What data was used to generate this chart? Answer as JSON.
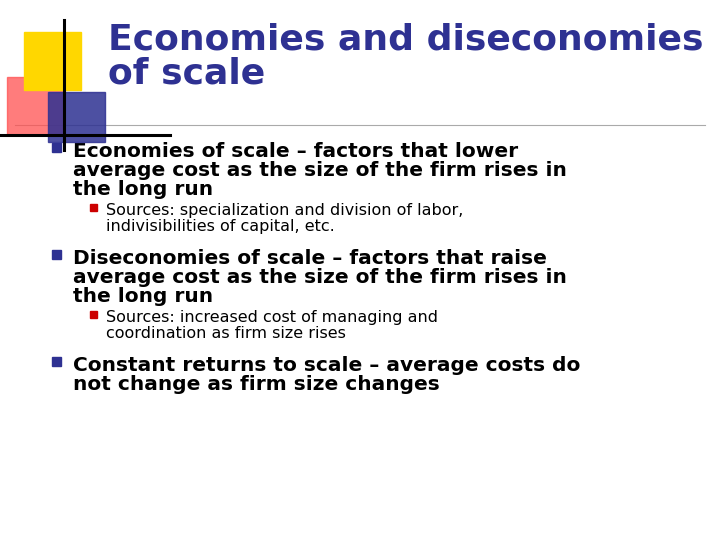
{
  "title_line1": "Economies and diseconomies",
  "title_line2": "of scale",
  "title_color": "#2E3192",
  "title_fontsize": 26,
  "bg_color": "#FFFFFF",
  "bullet_color": "#2E3192",
  "sub_bullet_color": "#CC0000",
  "bullet1_line1": "Economies of scale – factors that lower",
  "bullet1_line2": "average cost as the size of the firm rises in",
  "bullet1_line3": "the long run",
  "sub1_line1": "Sources: specialization and division of labor,",
  "sub1_line2": "indivisibilities of capital, etc.",
  "bullet2_line1": "Diseconomies of scale – factors that raise",
  "bullet2_line2": "average cost as the size of the firm rises in",
  "bullet2_line3": "the long run",
  "sub2_line1": "Sources: increased cost of managing and",
  "sub2_line2": "coordination as firm size rises",
  "bullet3_line1": "Constant returns to scale – average costs do",
  "bullet3_line2": "not change as firm size changes",
  "main_fs": 14.5,
  "sub_fs": 11.5,
  "deco_yellow": "#FFD700",
  "deco_red": "#FF5050",
  "deco_blue": "#2E3192"
}
